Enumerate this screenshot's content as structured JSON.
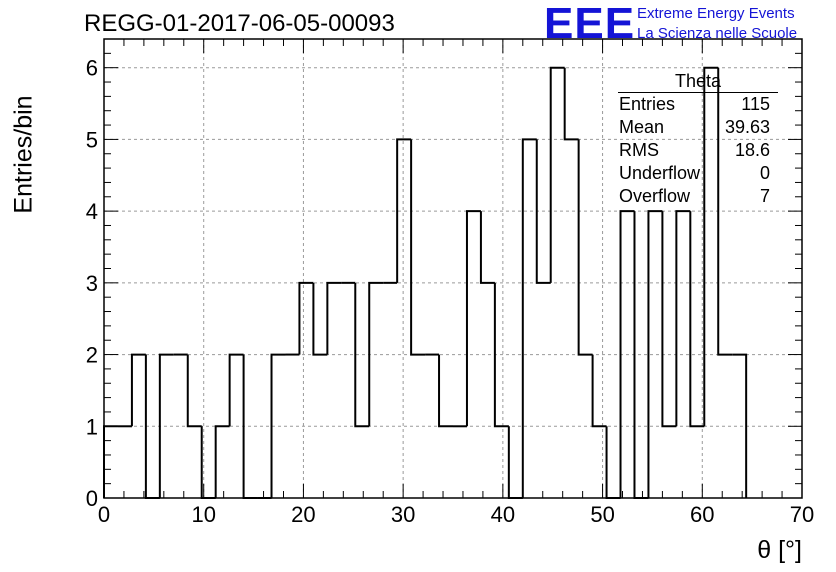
{
  "header": {
    "title": "REGG-01-2017-06-05-00093",
    "logo_text": "EEE",
    "logo_line1": "Extreme Energy Events",
    "logo_line2": "La Scienza nelle Scuole"
  },
  "stats_box": {
    "name": "Theta",
    "rows": [
      {
        "label": "Entries",
        "value": "115"
      },
      {
        "label": "Mean",
        "value": "39.63"
      },
      {
        "label": "RMS",
        "value": "18.6"
      },
      {
        "label": "Underflow",
        "value": "0"
      },
      {
        "label": "Overflow",
        "value": "7"
      }
    ]
  },
  "colors": {
    "logo": "#1414d6",
    "line": "#000000",
    "grid": "#9a9a9a"
  },
  "chart_data": {
    "type": "bar",
    "style": "step-histogram",
    "title": "REGG-01-2017-06-05-00093",
    "xlabel": "θ [°]",
    "ylabel": "Entries/bin",
    "xlim": [
      0,
      70
    ],
    "ylim": [
      0,
      6.4
    ],
    "grid": true,
    "bin_width": 1.4,
    "bin_start": 0,
    "x_ticks": [
      "0",
      "10",
      "20",
      "30",
      "40",
      "50",
      "60",
      "70"
    ],
    "y_ticks": [
      "0",
      "1",
      "2",
      "3",
      "4",
      "5",
      "6"
    ],
    "values": [
      1,
      1,
      2,
      0,
      2,
      2,
      1,
      0,
      1,
      2,
      0,
      0,
      2,
      2,
      3,
      2,
      3,
      3,
      1,
      3,
      3,
      5,
      2,
      2,
      1,
      1,
      4,
      3,
      1,
      0,
      5,
      3,
      6,
      5,
      2,
      1,
      0,
      4,
      0,
      4,
      1,
      4,
      1,
      6,
      2,
      2
    ]
  }
}
